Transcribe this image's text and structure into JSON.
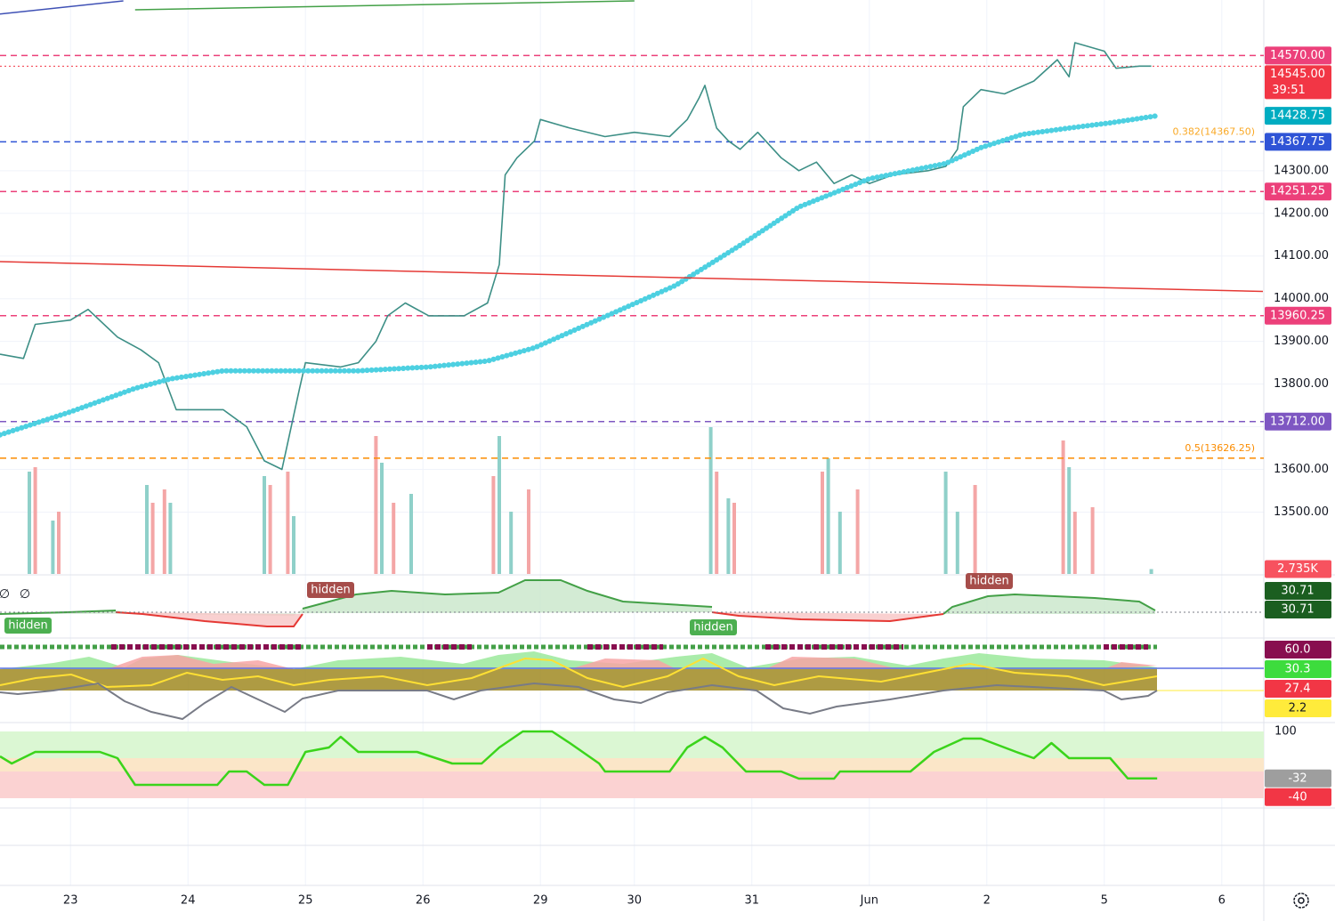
{
  "chart_data": {
    "type": "line",
    "xlim": [
      0,
      215
    ],
    "xticks": [
      {
        "value": 12,
        "label": "23"
      },
      {
        "value": 32,
        "label": "24"
      },
      {
        "value": 52,
        "label": "25"
      },
      {
        "value": 72,
        "label": "26"
      },
      {
        "value": 92,
        "label": "29"
      },
      {
        "value": 108,
        "label": "30"
      },
      {
        "value": 128,
        "label": "31"
      },
      {
        "value": 148,
        "label": "Jun"
      },
      {
        "value": 168,
        "label": "2"
      },
      {
        "value": 188,
        "label": "5"
      },
      {
        "value": 208,
        "label": "6"
      }
    ],
    "ylim": [
      13355,
      14700
    ],
    "yticks": [
      {
        "value": 13500,
        "label": "13500.00"
      },
      {
        "value": 13600,
        "label": "13600.00"
      },
      {
        "value": 13700,
        "label": "13700.00"
      },
      {
        "value": 13800,
        "label": "13800.00"
      },
      {
        "value": 13900,
        "label": "13900.00"
      },
      {
        "value": 14000,
        "label": "14000.00"
      },
      {
        "value": 14100,
        "label": "14100.00"
      },
      {
        "value": 14200,
        "label": "14200.00"
      },
      {
        "value": 14300,
        "label": "14300.00"
      }
    ],
    "grid": true,
    "series": [
      {
        "color": "#3d8f86",
        "style": "line",
        "x": [
          0,
          4,
          6,
          12,
          15,
          20,
          24,
          27,
          30,
          33,
          38,
          42,
          45,
          48,
          51,
          52,
          58,
          61,
          64,
          66,
          69,
          73,
          79,
          83,
          85,
          86,
          88,
          91,
          92,
          97,
          103,
          108,
          114,
          117,
          119,
          120,
          122,
          124,
          126,
          129,
          133,
          136,
          139,
          142,
          145,
          148,
          152,
          158,
          161,
          163,
          164,
          167,
          171,
          176,
          180,
          182,
          183,
          188,
          190,
          194,
          196
        ],
        "values": [
          13870,
          13860,
          13940,
          13950,
          13975,
          13910,
          13880,
          13850,
          13740,
          13740,
          13740,
          13700,
          13620,
          13600,
          13790,
          13850,
          13840,
          13850,
          13900,
          13960,
          13990,
          13960,
          13960,
          13990,
          14080,
          14290,
          14330,
          14370,
          14420,
          14400,
          14380,
          14390,
          14380,
          14420,
          14470,
          14500,
          14400,
          14370,
          14350,
          14390,
          14330,
          14300,
          14320,
          14270,
          14290,
          14270,
          14290,
          14300,
          14310,
          14350,
          14450,
          14490,
          14480,
          14510,
          14560,
          14520,
          14600,
          14580,
          14540,
          14545,
          14545
        ]
      },
      {
        "color": "#4dd0e1",
        "style": "dots",
        "x": [
          0,
          12,
          23,
          29,
          38,
          50,
          61,
          73,
          83,
          91,
          103,
          115,
          126,
          136,
          148,
          161,
          167,
          174,
          182,
          189,
          197
        ],
        "values": [
          13681,
          13735,
          13790,
          13812,
          13831,
          13831,
          13831,
          13840,
          13854,
          13885,
          13958,
          14031,
          14125,
          14215,
          14281,
          14317,
          14354,
          14385,
          14400,
          14412,
          14428.75
        ]
      },
      {
        "color": "#e53935",
        "style": "line",
        "x": [
          0,
          215
        ],
        "values": [
          14087,
          14017
        ]
      },
      {
        "color": "#43a047",
        "style": "line",
        "x": [
          23,
          108
        ],
        "values": [
          14677,
          14698
        ]
      },
      {
        "color": "#3f51b5",
        "style": "line",
        "x": [
          0,
          21
        ],
        "values": [
          14667,
          14698
        ]
      }
    ],
    "levels": [
      {
        "value": 14570,
        "label": "14570.00",
        "color": "#ec407a",
        "style": "dashed"
      },
      {
        "value": 14545,
        "label": "14545.00",
        "color": "#f23645",
        "style": "dotted",
        "countdown": "39:51"
      },
      {
        "value": 14428.75,
        "label": "14428.75",
        "color": "#00acc1",
        "style": "none"
      },
      {
        "value": 14367.75,
        "label": "14367.75",
        "color": "#2f54d6",
        "style": "dashed"
      },
      {
        "value": 14251.25,
        "label": "14251.25",
        "color": "#ec407a",
        "style": "dashed"
      },
      {
        "value": 13960.25,
        "label": "13960.25",
        "color": "#ec407a",
        "style": "dashed"
      },
      {
        "value": 13712,
        "label": "13712.00",
        "color": "#7e57c2",
        "style": "dashed"
      }
    ],
    "fibs": [
      {
        "value": 14367.5,
        "label": "0.382(14367.50)",
        "color": "#f9a825",
        "style": "none"
      },
      {
        "value": 13626.25,
        "label": "0.5(13626.25)",
        "color": "#fb8c00",
        "style": "dashed"
      }
    ],
    "volume": {
      "ylim": [
        0,
        80000
      ],
      "last": {
        "value": 2735,
        "label": "2.735K",
        "color": "#f7525f"
      },
      "series": [
        {
          "color": "#8fd0c9",
          "x": [
            5,
            9,
            25,
            29,
            45,
            50,
            65,
            70,
            85,
            87,
            121,
            124,
            141,
            143,
            161,
            163,
            182,
            196
          ],
          "values": [
            57500,
            30000,
            50000,
            40000,
            55000,
            32500,
            62500,
            45000,
            77500,
            35000,
            82500,
            42500,
            65000,
            35000,
            57500,
            35000,
            60000,
            2735
          ]
        },
        {
          "color": "#f4a6a6",
          "x": [
            6,
            10,
            26,
            28,
            46,
            49,
            64,
            67,
            84,
            90,
            122,
            125,
            140,
            146,
            166,
            181,
            183,
            186
          ],
          "values": [
            60000,
            35000,
            40000,
            47500,
            50000,
            57500,
            77500,
            40000,
            55000,
            47500,
            57500,
            40000,
            57500,
            47500,
            50000,
            75000,
            35000,
            37500
          ]
        }
      ]
    },
    "panes": [
      {
        "badges": [
          {
            "value": 30.71,
            "color": "#1b5e20"
          },
          {
            "value": 30.71,
            "color": "#1b5e20"
          }
        ],
        "labels": [
          "hidden",
          "hidden",
          "hidden",
          "hidden"
        ],
        "symbols": [
          "∅",
          "∅"
        ]
      },
      {
        "badges": [
          {
            "value": 60,
            "label": "60.0",
            "color": "#880e4f"
          },
          {
            "value": 30.3,
            "color": "#3ddc3d"
          },
          {
            "value": 27.4,
            "color": "#f23645"
          },
          {
            "value": 2.2,
            "color": "#ffeb3b"
          }
        ]
      },
      {
        "ylim": [
          -95,
          117.5
        ],
        "yticks": [
          100
        ],
        "series": {
          "color": "#3bd41b",
          "x": [
            0,
            2,
            6,
            11,
            17,
            20,
            23,
            32,
            37,
            39,
            42,
            45,
            49,
            52,
            56,
            58,
            61,
            71,
            77,
            82,
            85,
            89,
            94,
            97,
            102,
            103,
            114,
            117,
            120,
            123,
            127,
            133,
            136,
            142,
            143,
            155,
            159,
            164,
            167,
            173,
            176,
            179,
            182,
            189,
            192,
            197
          ],
          "values": [
            30,
            10,
            42.5,
            42.5,
            42.5,
            25,
            -50,
            -50,
            -50,
            -12.5,
            -12.5,
            -50,
            -50,
            42.5,
            55,
            85,
            42.5,
            42.5,
            10,
            10,
            55,
            100,
            100,
            67.5,
            10,
            -12.5,
            -12.5,
            55,
            85,
            55,
            -12.5,
            -12.5,
            -32.5,
            -32.5,
            -12.5,
            -12.5,
            42.5,
            80,
            80,
            42.5,
            25,
            67.5,
            25,
            25,
            -32,
            -32
          ]
        },
        "badges": [
          {
            "value": -32,
            "color": "#9e9e9e"
          },
          {
            "value": -40,
            "color": "#f23645"
          }
        ]
      }
    ]
  }
}
